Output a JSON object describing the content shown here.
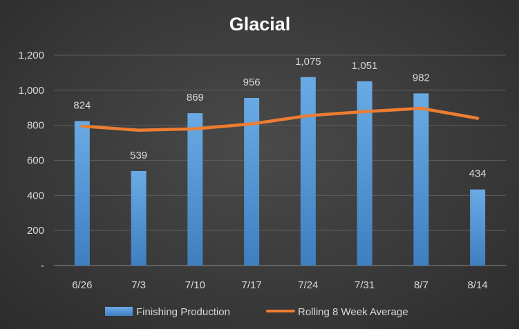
{
  "chart_data": {
    "type": "bar",
    "title": "Glacial",
    "categories": [
      "6/26",
      "7/3",
      "7/10",
      "7/17",
      "7/24",
      "7/31",
      "8/7",
      "8/14"
    ],
    "series": [
      {
        "name": "Finishing Production",
        "type": "bar",
        "values": [
          824,
          539,
          869,
          956,
          1075,
          1051,
          982,
          434
        ],
        "data_labels": [
          "824",
          "539",
          "869",
          "956",
          "1,075",
          "1,051",
          "982",
          "434"
        ],
        "color": "#5b9bd5"
      },
      {
        "name": "Rolling 8 Week Average",
        "type": "line",
        "values": [
          795,
          772,
          780,
          808,
          855,
          878,
          897,
          840
        ],
        "color": "#ed7d31"
      }
    ],
    "ylim": [
      0,
      1200
    ],
    "yticks": [
      0,
      200,
      400,
      600,
      800,
      1000,
      1200
    ],
    "ytick_labels": [
      "-",
      "200",
      "400",
      "600",
      "800",
      "1,000",
      "1,200"
    ],
    "grid": true,
    "legend_position": "bottom"
  }
}
